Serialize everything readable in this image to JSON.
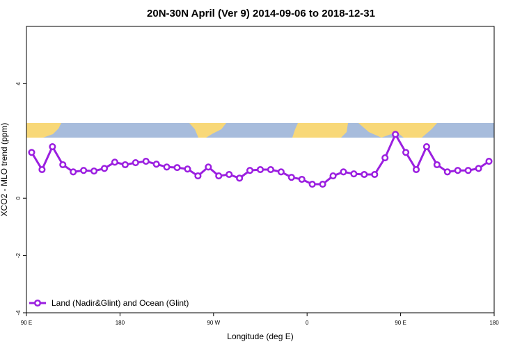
{
  "chart_data": {
    "type": "line",
    "title": "20N-30N April (Ver 9)   2014-09-06 to 2018-12-31",
    "x_label": "Longitude (deg E)",
    "y_label": "XCO2 - MLO trend (ppm)",
    "x": [
      95,
      105,
      115,
      125,
      135,
      145,
      155,
      165,
      175,
      185,
      195,
      205,
      215,
      225,
      235,
      245,
      255,
      265,
      275,
      285,
      295,
      305,
      315,
      325,
      335,
      345,
      355,
      365,
      375,
      385,
      395,
      405,
      415,
      425,
      435,
      445,
      455,
      465,
      475,
      485,
      495,
      505,
      515,
      525,
      535
    ],
    "series": [
      {
        "name": "Land (Nadir&Glint) and Ocean (Glint)",
        "color": "#9b1fe0",
        "values": [
          1.6,
          1.0,
          1.8,
          1.17,
          0.92,
          0.97,
          0.95,
          1.04,
          1.26,
          1.17,
          1.24,
          1.29,
          1.19,
          1.09,
          1.07,
          1.02,
          0.78,
          1.09,
          0.78,
          0.83,
          0.7,
          0.97,
          1.0,
          1.0,
          0.92,
          0.73,
          0.66,
          0.49,
          0.49,
          0.78,
          0.92,
          0.85,
          0.83,
          0.83,
          1.41,
          2.23,
          1.6,
          1.0,
          1.8,
          1.17,
          0.92,
          0.97,
          0.97,
          1.04,
          1.29
        ]
      }
    ],
    "xlim": [
      90,
      540
    ],
    "xticks": [
      {
        "value": 90,
        "label": "90 E"
      },
      180,
      {
        "value": 270,
        "label": "90 W"
      },
      {
        "value": 360,
        "label": "0"
      },
      {
        "value": 450,
        "label": "90 E"
      },
      {
        "value": 540,
        "label": "180"
      }
    ],
    "ylim": [
      -4,
      6
    ],
    "yticks": [
      -4,
      -2,
      0,
      4
    ],
    "legend": "bottom-left"
  }
}
